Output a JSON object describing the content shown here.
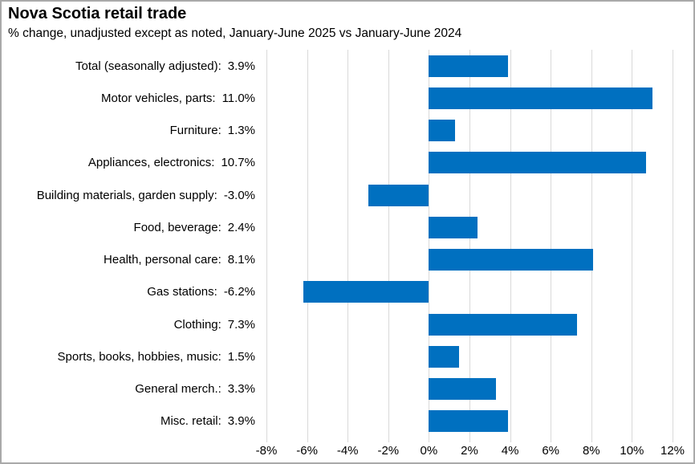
{
  "title": "Nova Scotia retail trade",
  "subtitle": "% change, unadjusted except as noted, January-June 2025 vs January-June 2024",
  "colors": {
    "bar": "#0070c0",
    "gridline": "#d9d9d9",
    "text": "#000000",
    "figure_border": "#a9a9a9"
  },
  "chart_data": {
    "type": "bar",
    "orientation": "horizontal",
    "title": "Nova Scotia retail trade",
    "subtitle": "% change, unadjusted except as noted, January-June 2025 vs January-June 2024",
    "xlabel": "",
    "ylabel": "",
    "xlim": [
      -8,
      12
    ],
    "grid": "vertical",
    "legend": "none",
    "categories": [
      "Total (seasonally adjusted):",
      "Motor vehicles, parts:",
      "Furniture:",
      "Appliances, electronics:",
      "Building materials, garden supply:",
      "Food, beverage:",
      "Health, personal care:",
      "Gas stations:",
      "Clothing:",
      "Sports, books, hobbies, music:",
      "General merch.:",
      "Misc. retail:"
    ],
    "values": [
      3.9,
      11.0,
      1.3,
      10.7,
      -3.0,
      2.4,
      8.1,
      -6.2,
      7.3,
      1.5,
      3.3,
      3.9
    ],
    "value_labels": [
      "3.9%",
      "11.0%",
      "1.3%",
      "10.7%",
      "-3.0%",
      "2.4%",
      "8.1%",
      "-6.2%",
      "7.3%",
      "1.5%",
      "3.3%",
      "3.9%"
    ],
    "xtick_values": [
      -8,
      -6,
      -4,
      -2,
      0,
      2,
      4,
      6,
      8,
      10,
      12
    ],
    "xtick_labels": [
      "-8%",
      "-6%",
      "-4%",
      "-2%",
      "0%",
      "2%",
      "4%",
      "6%",
      "8%",
      "10%",
      "12%"
    ]
  }
}
